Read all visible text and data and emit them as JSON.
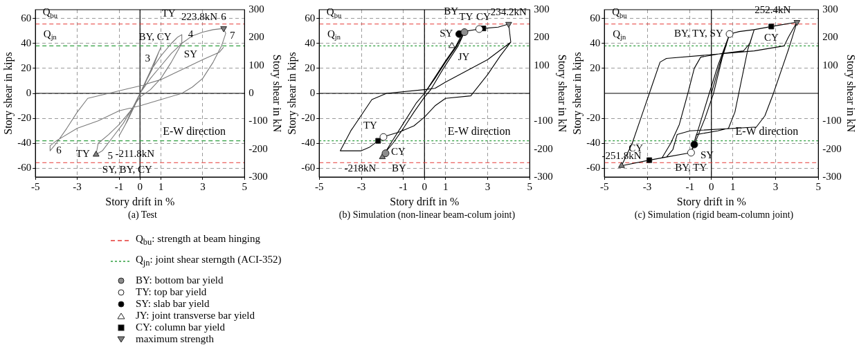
{
  "chart_data": [
    {
      "type": "line",
      "title": "(a) Test",
      "xlabel": "Story drift in %",
      "ylabel": "Story shear in kips",
      "y2label": "Story shear in kN",
      "xlim": [
        -5,
        5
      ],
      "xticks": [
        -5,
        -3,
        -1,
        0,
        1,
        3,
        5
      ],
      "ylim": [
        -67,
        67
      ],
      "yticks": [
        -60,
        -40,
        -20,
        0,
        20,
        40,
        60
      ],
      "y2lim": [
        -300,
        300
      ],
      "y2ticks": [
        -300,
        -200,
        -100,
        0,
        100,
        200,
        300
      ],
      "grid": true,
      "series": [
        {
          "type": "line",
          "color": "#7a7a7a",
          "marker": "none",
          "x": [
            0,
            0.3,
            0.6,
            0.9,
            1.0,
            0.6,
            0.2,
            0,
            -0.3,
            -0.7,
            -1,
            -0.6,
            -0.2,
            0,
            0.5,
            1,
            1.5,
            1.8,
            2.0,
            2.0,
            1.5,
            1,
            0.5,
            0,
            -0.5,
            -1,
            -1.5,
            -2.0,
            -2.1,
            -1.8,
            -1.3,
            -0.8,
            -0.3,
            0,
            0.5,
            1,
            1.5,
            2,
            2.5,
            3,
            3.5,
            4.0,
            4.1,
            3.9,
            3.5,
            3,
            2.5,
            2,
            1,
            0,
            -1,
            -2,
            -3,
            -4,
            -4.3,
            -4.3,
            -4.0,
            -3.5,
            -3,
            -2.5,
            -1.5,
            -0.5,
            0,
            1,
            2,
            3,
            3.8,
            4.0
          ],
          "values": [
            0,
            10,
            20,
            33,
            37,
            22,
            6,
            0,
            -10,
            -25,
            -34,
            -22,
            -8,
            0,
            18,
            30,
            40,
            45,
            47,
            40,
            25,
            12,
            3,
            -3,
            -15,
            -25,
            -33,
            -40,
            -49,
            -46,
            -35,
            -24,
            -10,
            0,
            12,
            22,
            32,
            40,
            46,
            49,
            51,
            52,
            48,
            38,
            25,
            12,
            5,
            0,
            -5,
            -10,
            -14,
            -22,
            -28,
            -38,
            -42,
            -46,
            -40,
            -28,
            -15,
            -4,
            0,
            4,
            6,
            11,
            19,
            27,
            33,
            37
          ]
        },
        {
          "type": "line",
          "color": "#e53935",
          "marker": "none",
          "line_style": "dashed",
          "x": [
            -5,
            5
          ],
          "values": [
            55.5,
            55.5
          ]
        },
        {
          "type": "line",
          "color": "#e53935",
          "marker": "none",
          "line_style": "dashed",
          "x": [
            -5,
            5
          ],
          "values": [
            -55.5,
            -55.5
          ]
        },
        {
          "type": "line",
          "color": "#2e9e3e",
          "marker": "none",
          "line_style": "dashed",
          "x": [
            -5,
            5
          ],
          "values": [
            38,
            38
          ]
        },
        {
          "type": "line",
          "color": "#2e9e3e",
          "marker": "none",
          "line_style": "dashed",
          "x": [
            -5,
            5
          ],
          "values": [
            -38,
            -38
          ]
        },
        {
          "type": "scatter",
          "color": "#7f7f7f",
          "marker": "triangle",
          "x": [
            4.0,
            -2.1
          ],
          "values": [
            52,
            -49
          ]
        }
      ],
      "annotations": [
        {
          "text": "Q$_{bu}$",
          "x": -4.3,
          "y": 55.5
        },
        {
          "text": "Q$_{jn}$",
          "x": -4.3,
          "y": 38
        },
        {
          "text": "223.8kN",
          "x": 4.0,
          "y": 52
        },
        {
          "text": "-211.8kN",
          "x": -2.1,
          "y": -49
        },
        {
          "text": "BY, CY",
          "x": 1.8,
          "y": 45
        },
        {
          "text": "TY",
          "x": 2.0,
          "y": 47
        },
        {
          "text": "SY",
          "x": 1.5,
          "y": 40
        },
        {
          "text": "TY",
          "x": -2.1,
          "y": -49
        },
        {
          "text": "SY, BY, CY",
          "x": -2.1,
          "y": -49
        },
        {
          "text": "4",
          "x": 2.0,
          "y": 47
        },
        {
          "text": "3",
          "x": 1.0,
          "y": 37
        },
        {
          "text": "5",
          "x": -1,
          "y": -34
        },
        {
          "text": "6",
          "x": 4.0,
          "y": 52
        },
        {
          "text": "7",
          "x": 4.0,
          "y": 37
        },
        {
          "text": "6",
          "x": -4.3,
          "y": -46
        },
        "E-W direction"
      ]
    },
    {
      "type": "line",
      "title": "(b) Simulation (non-linear beam-colum joint)",
      "xlabel": "Story drift in %",
      "ylabel": "Story shear in kips",
      "y2label": "Story shear in kN",
      "xlim": [
        -5,
        5
      ],
      "xticks": [
        -5,
        -3,
        -1,
        0,
        1,
        3,
        5
      ],
      "ylim": [
        -67,
        67
      ],
      "yticks": [
        -60,
        -40,
        -20,
        0,
        20,
        40,
        60
      ],
      "y2lim": [
        -300,
        300
      ],
      "y2ticks": [
        -300,
        -200,
        -100,
        100,
        200,
        300
      ],
      "grid": true,
      "legend": "bottom left",
      "series": [
        {
          "type": "line",
          "color": "#000000",
          "marker": "none",
          "x": [
            0,
            0.5,
            1.0,
            1.5,
            1.9,
            1.6,
            0.9,
            0.3,
            0,
            -0.5,
            -1.0,
            -1.5,
            -1.9,
            -2.0,
            -1.6,
            -1.0,
            -0.4,
            0,
            0.5,
            1.0,
            1.5,
            1.85,
            2.6,
            2.8,
            3.5,
            4.0,
            4.1,
            3.6,
            3.0,
            2.2,
            1.0,
            0.5,
            0,
            -0.5,
            -1.2,
            -2.0,
            -2.2,
            -2.6,
            -3.0,
            -4.0,
            -3.5,
            -2.5,
            -1.8,
            0,
            0.5,
            1.0,
            2.0,
            3.0,
            4.1
          ],
          "values": [
            0,
            12,
            25,
            37,
            49,
            38,
            20,
            3,
            -3,
            -15,
            -28,
            -40,
            -48,
            -51,
            -40,
            -24,
            -8,
            0,
            13,
            26,
            38,
            49.5,
            51.5,
            52,
            53,
            55.5,
            41,
            30,
            15,
            -2,
            -4,
            -10,
            -19,
            -26,
            -31,
            -35,
            -38,
            -43,
            -46,
            -46,
            -30,
            -5,
            0,
            3,
            4,
            9,
            18,
            27,
            41
          ]
        },
        {
          "type": "line",
          "name": "Q$_{bu}$: strength at beam hinging",
          "color": "#e53935",
          "marker": "none",
          "line_style": "dashed",
          "x": [
            -5,
            5
          ],
          "values": [
            55.5,
            55.5
          ]
        },
        {
          "type": "line",
          "color": "#e53935",
          "marker": "none",
          "line_style": "dashed",
          "x": [
            -5,
            5
          ],
          "values": [
            -55.5,
            -55.5
          ]
        },
        {
          "type": "line",
          "name": "Q$_{jn}$: joint shear sterngth (ACI-352)",
          "color": "#2e9e3e",
          "marker": "none",
          "line_style": "dotted",
          "x": [
            -5,
            5
          ],
          "values": [
            38,
            38
          ]
        },
        {
          "type": "line",
          "color": "#2e9e3e",
          "marker": "none",
          "line_style": "dotted",
          "x": [
            -5,
            5
          ],
          "values": [
            -38,
            -38
          ]
        },
        {
          "type": "scatter",
          "name": "BY: bottom bar yield",
          "color": "#8c8c8c",
          "marker": "circle",
          "x": [
            1.9,
            -1.85
          ],
          "values": [
            49,
            -48
          ]
        },
        {
          "type": "scatter",
          "name": "TY: top bar yield",
          "color": "#ffffff",
          "marker": "circle",
          "x": [
            2.6,
            -1.95
          ],
          "values": [
            51.5,
            -35
          ]
        },
        {
          "type": "scatter",
          "name": "SY: slab bar yield",
          "color": "#000000",
          "marker": "circle",
          "x": [
            1.65
          ],
          "values": [
            47.5
          ]
        },
        {
          "type": "scatter",
          "name": "JY: joint transverse bar yield",
          "color": "#ffffff",
          "marker": "triangle",
          "x": [
            1.3
          ],
          "values": [
            38
          ]
        },
        {
          "type": "scatter",
          "name": "CY: column bar yield",
          "color": "#000000",
          "marker": "square",
          "x": [
            2.8,
            -2.2
          ],
          "values": [
            52,
            -38
          ]
        },
        {
          "type": "scatter",
          "name": "maximum strength",
          "color": "#7f7f7f",
          "marker": "triangle",
          "x": [
            4.0,
            -2.0
          ],
          "values": [
            55.5,
            -51
          ]
        }
      ],
      "annotations": [
        {
          "text": "Q$_{bu}$",
          "x": -4.3,
          "y": 55.5
        },
        {
          "text": "Q$_{jn}$",
          "x": -4.3,
          "y": 38
        },
        {
          "text": "BY",
          "x": 1.9,
          "y": 49
        },
        {
          "text": "TY",
          "x": 2.6,
          "y": 51.5
        },
        {
          "text": "CY",
          "x": 2.8,
          "y": 52
        },
        {
          "text": "SY",
          "x": 1.65,
          "y": 47.5
        },
        {
          "text": "JY",
          "x": 1.3,
          "y": 38
        },
        {
          "text": "234.2kN",
          "x": 4.0,
          "y": 55.5
        },
        {
          "text": "TY",
          "x": -1.95,
          "y": -35
        },
        {
          "text": "CY",
          "x": -2.2,
          "y": -38
        },
        {
          "text": "BY",
          "x": -1.85,
          "y": -48
        },
        {
          "text": "-218kN",
          "x": -2.0,
          "y": -51
        },
        "E-W direction"
      ]
    },
    {
      "type": "line",
      "title": "(c) Simulation (rigid beam-column joint)",
      "xlabel": "Story drift in %",
      "ylabel": "Story shear in kips",
      "y2label": "Story shear in kN",
      "xlim": [
        -5,
        5
      ],
      "xticks": [
        -5,
        -3,
        -1,
        0,
        1,
        3,
        5
      ],
      "ylim": [
        -67,
        67
      ],
      "yticks": [
        -60,
        -40,
        -20,
        20,
        40,
        60
      ],
      "y2lim": [
        -300,
        300
      ],
      "y2ticks": [
        -300,
        -200,
        -100,
        100,
        200,
        300
      ],
      "grid": true,
      "series": [
        {
          "type": "line",
          "color": "#000000",
          "marker": "none",
          "x": [
            0,
            0.4,
            0.85,
            0.5,
            0.1,
            -0.3,
            -0.95,
            -0.6,
            -0.1,
            0.3,
            0.85,
            1.3,
            2.0,
            1.7,
            1.4,
            1.1,
            0.8,
            0.3,
            -0.7,
            -0.95,
            -2.1,
            -2.3,
            -1.9,
            -1.5,
            -1.1,
            -0.8,
            -0.5,
            0.5,
            1.5,
            1.8,
            2.0,
            2.8,
            4.0,
            3.6,
            3.3,
            2.9,
            2.5,
            2.1,
            -1.0,
            -1.6,
            -1.8,
            -2.1,
            -2.9,
            -4.2,
            -3.7,
            -3.2,
            -2.8,
            -2.4,
            -2.1,
            0,
            2.0,
            3.4,
            3.6,
            4.0
          ],
          "values": [
            0,
            24,
            47.5,
            28,
            0,
            -20,
            -47.5,
            -28,
            0,
            22,
            47.5,
            49.5,
            51,
            35,
            10,
            -15,
            -28,
            -30,
            -33,
            -47.5,
            -51,
            -51.5,
            -40,
            -25,
            0,
            20,
            29,
            32,
            34,
            40,
            51,
            53.5,
            57,
            35,
            20,
            0,
            -18,
            -27,
            -30,
            -33,
            -45,
            -51,
            -53.5,
            -58,
            -40,
            -15,
            5,
            25,
            28,
            31,
            34,
            38,
            45,
            57
          ]
        },
        {
          "type": "line",
          "color": "#e53935",
          "marker": "none",
          "line_style": "dashed",
          "x": [
            -5,
            5
          ],
          "values": [
            55.5,
            55.5
          ]
        },
        {
          "type": "line",
          "color": "#e53935",
          "marker": "none",
          "line_style": "dashed",
          "x": [
            -5,
            5
          ],
          "values": [
            -55.5,
            -55.5
          ]
        },
        {
          "type": "line",
          "color": "#2e9e3e",
          "marker": "none",
          "line_style": "dotted",
          "x": [
            -5,
            5
          ],
          "values": [
            38,
            38
          ]
        },
        {
          "type": "line",
          "color": "#2e9e3e",
          "marker": "none",
          "line_style": "dotted",
          "x": [
            -5,
            5
          ],
          "values": [
            -38,
            -38
          ]
        },
        {
          "type": "scatter",
          "color": "#ffffff",
          "marker": "circle",
          "x": [
            0.85,
            -0.95
          ],
          "values": [
            47.5,
            -47.5
          ]
        },
        {
          "type": "scatter",
          "color": "#000000",
          "marker": "circle",
          "x": [
            -0.8
          ],
          "values": [
            -41
          ]
        },
        {
          "type": "scatter",
          "color": "#000000",
          "marker": "square",
          "x": [
            2.8,
            -2.9
          ],
          "values": [
            53.5,
            -53.5
          ]
        },
        {
          "type": "scatter",
          "color": "#7f7f7f",
          "marker": "triangle",
          "x": [
            4.0,
            -4.2
          ],
          "values": [
            57,
            -58
          ]
        }
      ],
      "annotations": [
        {
          "text": "Q$_{bu}$",
          "x": -4.3,
          "y": 55.5
        },
        {
          "text": "Q$_{jn}$",
          "x": -4.3,
          "y": 38
        },
        {
          "text": "252.4kN",
          "x": 4.0,
          "y": 57
        },
        {
          "text": "CY",
          "x": 2.8,
          "y": 53.5
        },
        {
          "text": "BY, TY, SY",
          "x": 0.85,
          "y": 47.5
        },
        {
          "text": "SY",
          "x": -0.8,
          "y": -41
        },
        {
          "text": "BY, TY",
          "x": -0.95,
          "y": -47.5
        },
        {
          "text": "CY",
          "x": -2.9,
          "y": -53.5
        },
        {
          "text": "-251.8kN",
          "x": -4.2,
          "y": -58
        },
        "E-W direction"
      ]
    }
  ]
}
